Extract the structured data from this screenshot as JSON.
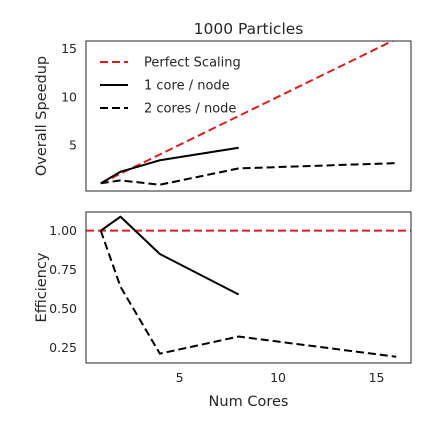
{
  "chart_data": [
    {
      "type": "line",
      "title": "1000 Particles",
      "xlabel": "",
      "ylabel": "Overall Speedup",
      "xlim": [
        0.25,
        16.75
      ],
      "ylim": [
        0.2,
        15.8
      ],
      "xticks": [
        5,
        10,
        15
      ],
      "xtick_labels": [
        "",
        "",
        ""
      ],
      "yticks": [
        5,
        10,
        15
      ],
      "ytick_labels": [
        "5",
        "10",
        "15"
      ],
      "grid": false,
      "legend_position": "top-left",
      "series": [
        {
          "name": "Perfect Scaling",
          "color": "#d62020",
          "dash": "dashed",
          "x": [
            1,
            2,
            4,
            8,
            16
          ],
          "y": [
            1,
            2,
            4,
            8,
            16
          ]
        },
        {
          "name": "1 core / node",
          "color": "#000000",
          "dash": "solid",
          "x": [
            1,
            2,
            4,
            8
          ],
          "y": [
            1.0,
            2.2,
            3.4,
            4.7
          ]
        },
        {
          "name": "2 cores / node",
          "color": "#000000",
          "dash": "dashed",
          "x": [
            1,
            2,
            4,
            8,
            16
          ],
          "y": [
            1.0,
            1.3,
            0.85,
            2.55,
            3.1
          ]
        }
      ]
    },
    {
      "type": "line",
      "title": "",
      "xlabel": "Num Cores",
      "ylabel": "Efficiency",
      "xlim": [
        0.25,
        16.75
      ],
      "ylim": [
        0.15,
        1.12
      ],
      "xticks": [
        5,
        10,
        15
      ],
      "xtick_labels": [
        "5",
        "10",
        "15"
      ],
      "yticks": [
        0.25,
        0.5,
        0.75,
        1.0
      ],
      "ytick_labels": [
        "0.25",
        "0.50",
        "0.75",
        "1.00"
      ],
      "grid": false,
      "reference_line": {
        "y": 1.0,
        "color": "#d62020",
        "dash": "dashed"
      },
      "series": [
        {
          "name": "1 core / node",
          "color": "#000000",
          "dash": "solid",
          "x": [
            1,
            2,
            4,
            8
          ],
          "y": [
            1.0,
            1.09,
            0.85,
            0.59
          ]
        },
        {
          "name": "2 cores / node",
          "color": "#000000",
          "dash": "dashed",
          "x": [
            1,
            2,
            4,
            8,
            16
          ],
          "y": [
            1.0,
            0.64,
            0.21,
            0.32,
            0.19
          ]
        }
      ]
    }
  ]
}
